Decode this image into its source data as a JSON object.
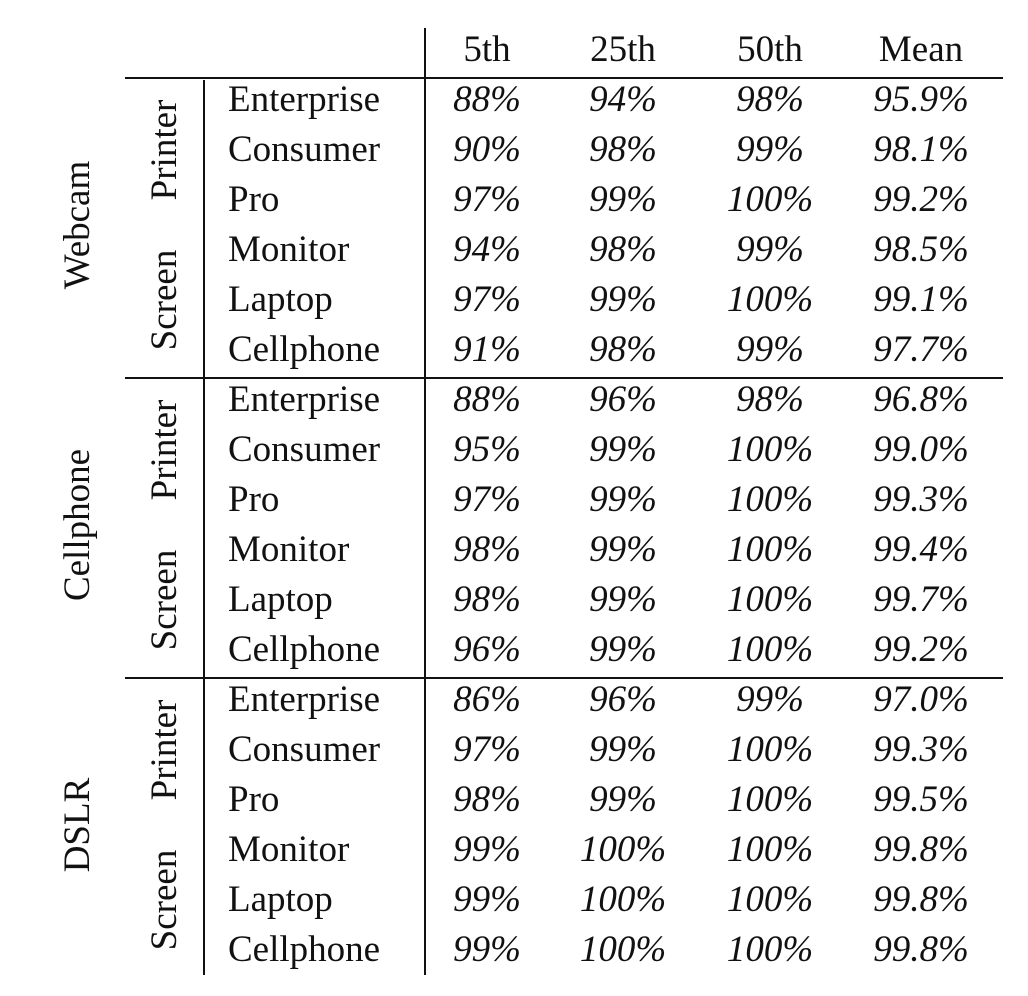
{
  "table": {
    "columns": [
      "5th",
      "25th",
      "50th",
      "Mean"
    ],
    "groups": [
      {
        "device": "Webcam",
        "subgroups": [
          {
            "label": "Printer",
            "rows": [
              {
                "name": "Enterprise",
                "values": [
                  "88%",
                  "94%",
                  "98%",
                  "95.9%"
                ]
              },
              {
                "name": "Consumer",
                "values": [
                  "90%",
                  "98%",
                  "99%",
                  "98.1%"
                ]
              },
              {
                "name": "Pro",
                "values": [
                  "97%",
                  "99%",
                  "100%",
                  "99.2%"
                ]
              }
            ]
          },
          {
            "label": "Screen",
            "rows": [
              {
                "name": "Monitor",
                "values": [
                  "94%",
                  "98%",
                  "99%",
                  "98.5%"
                ]
              },
              {
                "name": "Laptop",
                "values": [
                  "97%",
                  "99%",
                  "100%",
                  "99.1%"
                ]
              },
              {
                "name": "Cellphone",
                "values": [
                  "91%",
                  "98%",
                  "99%",
                  "97.7%"
                ]
              }
            ]
          }
        ]
      },
      {
        "device": "Cellphone",
        "subgroups": [
          {
            "label": "Printer",
            "rows": [
              {
                "name": "Enterprise",
                "values": [
                  "88%",
                  "96%",
                  "98%",
                  "96.8%"
                ]
              },
              {
                "name": "Consumer",
                "values": [
                  "95%",
                  "99%",
                  "100%",
                  "99.0%"
                ]
              },
              {
                "name": "Pro",
                "values": [
                  "97%",
                  "99%",
                  "100%",
                  "99.3%"
                ]
              }
            ]
          },
          {
            "label": "Screen",
            "rows": [
              {
                "name": "Monitor",
                "values": [
                  "98%",
                  "99%",
                  "100%",
                  "99.4%"
                ]
              },
              {
                "name": "Laptop",
                "values": [
                  "98%",
                  "99%",
                  "100%",
                  "99.7%"
                ]
              },
              {
                "name": "Cellphone",
                "values": [
                  "96%",
                  "99%",
                  "100%",
                  "99.2%"
                ]
              }
            ]
          }
        ]
      },
      {
        "device": "DSLR",
        "subgroups": [
          {
            "label": "Printer",
            "rows": [
              {
                "name": "Enterprise",
                "values": [
                  "86%",
                  "96%",
                  "99%",
                  "97.0%"
                ]
              },
              {
                "name": "Consumer",
                "values": [
                  "97%",
                  "99%",
                  "100%",
                  "99.3%"
                ]
              },
              {
                "name": "Pro",
                "values": [
                  "98%",
                  "99%",
                  "100%",
                  "99.5%"
                ]
              }
            ]
          },
          {
            "label": "Screen",
            "rows": [
              {
                "name": "Monitor",
                "values": [
                  "99%",
                  "100%",
                  "100%",
                  "99.8%"
                ]
              },
              {
                "name": "Laptop",
                "values": [
                  "99%",
                  "100%",
                  "100%",
                  "99.8%"
                ]
              },
              {
                "name": "Cellphone",
                "values": [
                  "99%",
                  "100%",
                  "100%",
                  "99.8%"
                ]
              }
            ]
          }
        ]
      }
    ]
  }
}
